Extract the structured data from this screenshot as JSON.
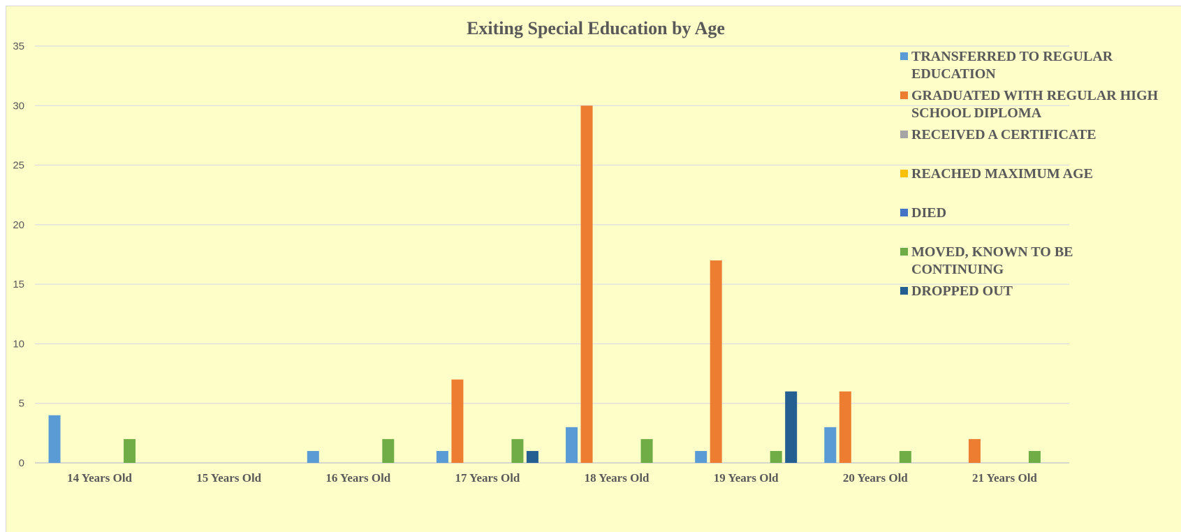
{
  "chart_data": {
    "type": "bar",
    "title": "Exiting Special Education by Age",
    "xlabel": "",
    "ylabel": "",
    "ylim": [
      0,
      35
    ],
    "yticks": [
      0,
      5,
      10,
      15,
      20,
      25,
      30,
      35
    ],
    "grid": true,
    "legend_position": "right",
    "categories": [
      "14 Years Old",
      "15 Years Old",
      "16 Years Old",
      "17 Years Old",
      "18 Years Old",
      "19 Years Old",
      "20 Years Old",
      "21 Years Old"
    ],
    "series": [
      {
        "name": "TRANSFERRED TO REGULAR EDUCATION",
        "legend_lines": [
          "TRANSFERRED TO REGULAR",
          "EDUCATION"
        ],
        "color": "#5b9bd5",
        "values": [
          4,
          0,
          1,
          1,
          3,
          1,
          3,
          0
        ]
      },
      {
        "name": "GRADUATED WITH REGULAR HIGH SCHOOL DIPLOMA",
        "legend_lines": [
          "GRADUATED WITH REGULAR HIGH",
          "SCHOOL DIPLOMA"
        ],
        "color": "#ed7d31",
        "values": [
          0,
          0,
          0,
          7,
          30,
          17,
          6,
          2
        ]
      },
      {
        "name": "RECEIVED A CERTIFICATE",
        "legend_lines": [
          "RECEIVED A CERTIFICATE"
        ],
        "color": "#a5a5a5",
        "values": [
          0,
          0,
          0,
          0,
          0,
          0,
          0,
          0
        ]
      },
      {
        "name": "REACHED MAXIMUM AGE",
        "legend_lines": [
          "REACHED MAXIMUM AGE"
        ],
        "color": "#ffc000",
        "values": [
          0,
          0,
          0,
          0,
          0,
          0,
          0,
          0
        ]
      },
      {
        "name": "DIED",
        "legend_lines": [
          "DIED"
        ],
        "color": "#4472c4",
        "values": [
          0,
          0,
          0,
          0,
          0,
          0,
          0,
          0
        ]
      },
      {
        "name": "MOVED, KNOWN TO BE CONTINUING",
        "legend_lines": [
          "MOVED, KNOWN TO BE",
          "CONTINUING"
        ],
        "color": "#70ad47",
        "values": [
          2,
          0,
          2,
          2,
          2,
          1,
          1,
          1
        ]
      },
      {
        "name": "DROPPED OUT",
        "legend_lines": [
          "DROPPED OUT"
        ],
        "color": "#255e91",
        "values": [
          0,
          0,
          0,
          1,
          0,
          6,
          0,
          0
        ]
      }
    ]
  }
}
